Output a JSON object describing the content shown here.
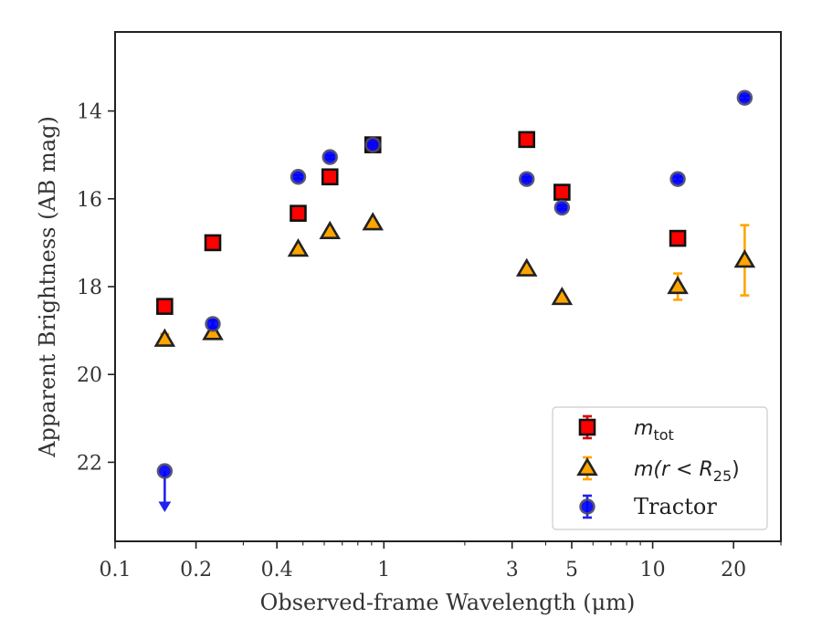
{
  "chart_data": {
    "type": "scatter",
    "title": "",
    "xlabel": "Observed-frame Wavelength (μm)",
    "ylabel": "Apparent Brightness (AB mag)",
    "xscale": "log",
    "xlim": [
      0.1,
      30
    ],
    "ylim": [
      23.8,
      12.2
    ],
    "y_inverted": true,
    "x_ticks": [
      0.1,
      0.2,
      0.4,
      1,
      3,
      5,
      10,
      20
    ],
    "x_tick_labels": [
      "0.1",
      "0.2",
      "0.4",
      "1",
      "3",
      "5",
      "10",
      "20"
    ],
    "y_ticks": [
      14,
      16,
      18,
      20,
      22
    ],
    "y_tick_labels": [
      "14",
      "16",
      "18",
      "20",
      "22"
    ],
    "legend": {
      "placement": "lower-right",
      "entries": [
        {
          "label_main": "m",
          "label_sub": "tot",
          "style": "mtot"
        },
        {
          "label_main": "m(r < R",
          "label_sub": "25",
          "label_end": ")",
          "style": "mr25"
        },
        {
          "label_main": "Tractor",
          "style": "tractor"
        }
      ]
    },
    "series": [
      {
        "style": "mtot",
        "color": "#ff0000",
        "points": [
          {
            "x": 0.153,
            "y": 18.45,
            "err": 0.06
          },
          {
            "x": 0.231,
            "y": 17.0,
            "err": 0.04
          },
          {
            "x": 0.48,
            "y": 16.33,
            "err": 0.03
          },
          {
            "x": 0.63,
            "y": 15.5,
            "err": 0.03
          },
          {
            "x": 0.91,
            "y": 14.77,
            "err": 0.03
          },
          {
            "x": 3.4,
            "y": 14.65,
            "err": 0.03
          },
          {
            "x": 4.6,
            "y": 15.85,
            "err": 0.04
          },
          {
            "x": 12.4,
            "y": 16.9,
            "err": 0.05
          }
        ]
      },
      {
        "style": "mr25",
        "color": "#ffa500",
        "points": [
          {
            "x": 0.153,
            "y": 19.2,
            "err": 0.12
          },
          {
            "x": 0.231,
            "y": 19.05,
            "err": 0.1
          },
          {
            "x": 0.48,
            "y": 17.15,
            "err": 0.05
          },
          {
            "x": 0.63,
            "y": 16.75,
            "err": 0.05
          },
          {
            "x": 0.91,
            "y": 16.55,
            "err": 0.05
          },
          {
            "x": 3.4,
            "y": 17.6,
            "err": 0.05
          },
          {
            "x": 4.6,
            "y": 18.25,
            "err": 0.06
          },
          {
            "x": 12.4,
            "y": 18.0,
            "err": 0.3
          },
          {
            "x": 22.0,
            "y": 17.4,
            "err": 0.8
          }
        ]
      },
      {
        "style": "tractor",
        "color": "#0000ff",
        "points": [
          {
            "x": 0.153,
            "y": 22.2,
            "upper_limit": true
          },
          {
            "x": 0.231,
            "y": 18.85,
            "err": 0.08
          },
          {
            "x": 0.48,
            "y": 15.5,
            "err": 0.04
          },
          {
            "x": 0.63,
            "y": 15.05,
            "err": 0.04
          },
          {
            "x": 0.91,
            "y": 14.77,
            "err": 0.04
          },
          {
            "x": 3.4,
            "y": 15.55,
            "err": 0.04
          },
          {
            "x": 4.6,
            "y": 16.2,
            "err": 0.04
          },
          {
            "x": 12.4,
            "y": 15.55,
            "err": 0.05
          },
          {
            "x": 22.0,
            "y": 13.7,
            "err": 0.05
          }
        ]
      }
    ]
  }
}
